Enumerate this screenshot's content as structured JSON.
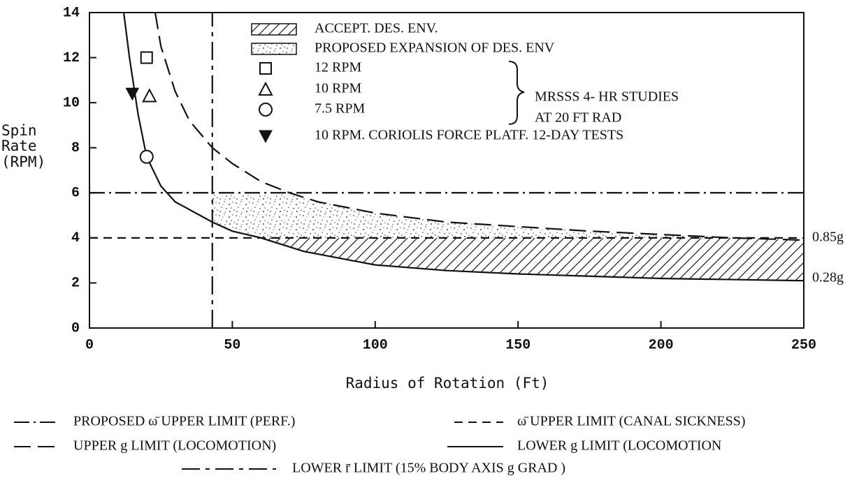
{
  "chart_data": {
    "type": "line",
    "xlabel": "Radius of Rotation (Ft)",
    "ylabel": [
      "Spin",
      "Rate",
      "(RPM)"
    ],
    "xlim": [
      0,
      250
    ],
    "xticks": [
      0,
      50,
      100,
      150,
      200,
      250
    ],
    "ylim": [
      0,
      14
    ],
    "yticks": [
      0,
      2,
      4,
      6,
      8,
      10,
      12,
      14
    ],
    "series": [
      {
        "name": "PROPOSED ω̄ UPPER LIMIT (PERF.)",
        "style": "dashdot",
        "color": "#111",
        "x": [
          0,
          250
        ],
        "values": [
          6,
          6
        ]
      },
      {
        "name": "ω̄ UPPER LIMIT (CANAL SICKNESS)",
        "style": "dash",
        "color": "#111",
        "x": [
          0,
          250
        ],
        "values": [
          4,
          4
        ]
      },
      {
        "name": "UPPER g LIMIT (LOCOMOTION)",
        "style": "longdash",
        "color": "#111",
        "x": [
          23,
          25,
          30,
          35,
          43,
          50,
          60,
          70,
          80,
          100,
          125,
          150,
          175,
          200,
          225,
          250
        ],
        "values": [
          14,
          12.5,
          10.5,
          9.2,
          8,
          7.3,
          6.5,
          6,
          5.6,
          5.1,
          4.7,
          4.5,
          4.3,
          4.15,
          4.0,
          3.9
        ]
      },
      {
        "name": "LOWER g LIMIT (LOCOMOTION",
        "style": "solid",
        "color": "#111",
        "x": [
          12,
          14,
          17,
          20,
          25,
          30,
          43,
          50,
          60,
          75,
          100,
          125,
          150,
          175,
          200,
          225,
          250
        ],
        "values": [
          14,
          12,
          9.5,
          7.6,
          6.3,
          5.6,
          4.7,
          4.3,
          4.0,
          3.4,
          2.8,
          2.55,
          2.4,
          2.3,
          2.2,
          2.15,
          2.1
        ]
      },
      {
        "name": "LOWER r̄ LIMIT (15% BODY AXIS g GRAD )",
        "style": "dashdotdot",
        "color": "#111",
        "x": [
          43,
          43
        ],
        "values": [
          0,
          14
        ]
      }
    ],
    "areas": [
      {
        "name": "ACCEPT. DES. ENV.",
        "pattern": "hatch",
        "x": [
          60,
          75,
          100,
          125,
          150,
          175,
          200,
          225,
          250
        ],
        "lower": [
          4.0,
          3.4,
          2.8,
          2.55,
          2.4,
          2.3,
          2.2,
          2.15,
          2.1
        ],
        "upper": [
          4,
          4,
          4,
          4,
          4,
          4,
          4,
          4,
          3.9
        ]
      },
      {
        "name": "PROPOSED EXPANSION OF DES. ENV",
        "pattern": "stipple",
        "x": [
          43,
          50,
          60,
          70,
          80,
          100,
          125,
          150,
          175,
          200,
          220
        ],
        "lower": [
          4.7,
          4.3,
          4.0,
          4,
          4,
          4,
          4,
          4,
          4,
          4,
          4
        ],
        "upper": [
          5.9,
          5.9,
          5.9,
          5.9,
          5.6,
          5.1,
          4.7,
          4.5,
          4.3,
          4.15,
          4.05
        ]
      }
    ],
    "points": [
      {
        "name": "12 RPM",
        "marker": "square",
        "x": [
          20
        ],
        "values": [
          12
        ]
      },
      {
        "name": "10 RPM",
        "marker": "triangle",
        "x": [
          21
        ],
        "values": [
          10.3
        ]
      },
      {
        "name": "7.5 RPM",
        "marker": "circle",
        "x": [
          20
        ],
        "values": [
          7.6
        ]
      },
      {
        "name": "10 RPM. CORIOLIS FORCE PLATF. 12-DAY TESTS",
        "marker": "triangle-down-filled",
        "x": [
          15
        ],
        "values": [
          10.4
        ]
      }
    ],
    "brace_note": [
      "MRSSS 4- HR STUDIES",
      "AT 20 FT RAD"
    ],
    "right_labels": [
      {
        "text": "0.85g",
        "y": 4
      },
      {
        "text": "0.28g",
        "y": 2.2
      }
    ]
  }
}
